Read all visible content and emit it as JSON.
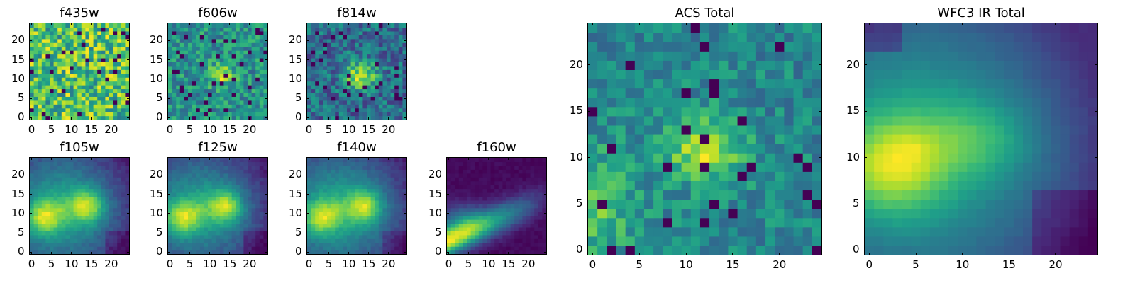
{
  "chart_data": [
    {
      "type": "heatmap",
      "title": "f435w",
      "data_range": [
        0,
        24
      ],
      "xticks": [
        "0",
        "5",
        "10",
        "15",
        "20"
      ],
      "yticks": [
        "0",
        "5",
        "10",
        "15",
        "20"
      ],
      "colormap": "viridis",
      "pattern": "noise"
    },
    {
      "type": "heatmap",
      "title": "f606w",
      "data_range": [
        0,
        24
      ],
      "xticks": [
        "0",
        "5",
        "10",
        "15",
        "20"
      ],
      "yticks": [
        "0",
        "5",
        "10",
        "15",
        "20"
      ],
      "colormap": "viridis",
      "pattern": "noise_faint_blob"
    },
    {
      "type": "heatmap",
      "title": "f814w",
      "data_range": [
        0,
        24
      ],
      "xticks": [
        "0",
        "5",
        "10",
        "15",
        "20"
      ],
      "yticks": [
        "0",
        "5",
        "10",
        "15",
        "20"
      ],
      "colormap": "viridis",
      "pattern": "noise_blob"
    },
    {
      "type": "heatmap",
      "title": "f105w",
      "data_range": [
        0,
        24
      ],
      "xticks": [
        "0",
        "5",
        "10",
        "15",
        "20"
      ],
      "yticks": [
        "0",
        "5",
        "10",
        "15",
        "20"
      ],
      "colormap": "viridis",
      "pattern": "ir_two_blobs"
    },
    {
      "type": "heatmap",
      "title": "f125w",
      "data_range": [
        0,
        24
      ],
      "xticks": [
        "0",
        "5",
        "10",
        "15",
        "20"
      ],
      "yticks": [
        "0",
        "5",
        "10",
        "15",
        "20"
      ],
      "colormap": "viridis",
      "pattern": "ir_two_blobs"
    },
    {
      "type": "heatmap",
      "title": "f140w",
      "data_range": [
        0,
        24
      ],
      "xticks": [
        "0",
        "5",
        "10",
        "15",
        "20"
      ],
      "yticks": [
        "0",
        "5",
        "10",
        "15",
        "20"
      ],
      "colormap": "viridis",
      "pattern": "ir_two_blobs"
    },
    {
      "type": "heatmap",
      "title": "f160w",
      "data_range": [
        0,
        24
      ],
      "xticks": [
        "0",
        "5",
        "10",
        "15",
        "20"
      ],
      "yticks": [
        "0",
        "5",
        "10",
        "15",
        "20"
      ],
      "colormap": "viridis",
      "pattern": "ir_left_blob"
    },
    {
      "type": "heatmap",
      "title": "ACS Total",
      "data_range": [
        0,
        24
      ],
      "xticks": [
        "0",
        "5",
        "10",
        "15",
        "20"
      ],
      "yticks": [
        "0",
        "5",
        "10",
        "15",
        "20"
      ],
      "colormap": "viridis",
      "pattern": "acs_total"
    },
    {
      "type": "heatmap",
      "title": "WFC3 IR Total",
      "data_range": [
        0,
        24
      ],
      "xticks": [
        "0",
        "5",
        "10",
        "15",
        "20"
      ],
      "yticks": [
        "0",
        "5",
        "10",
        "15",
        "20"
      ],
      "colormap": "viridis",
      "pattern": "ir_total"
    }
  ]
}
